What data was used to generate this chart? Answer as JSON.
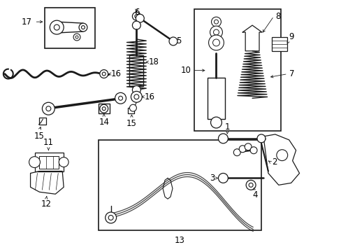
{
  "bg_color": "#ffffff",
  "line_color": "#1a1a1a",
  "label_color": "#000000",
  "font_size": 8.5,
  "fig_width": 4.89,
  "fig_height": 3.6,
  "dpi": 100
}
